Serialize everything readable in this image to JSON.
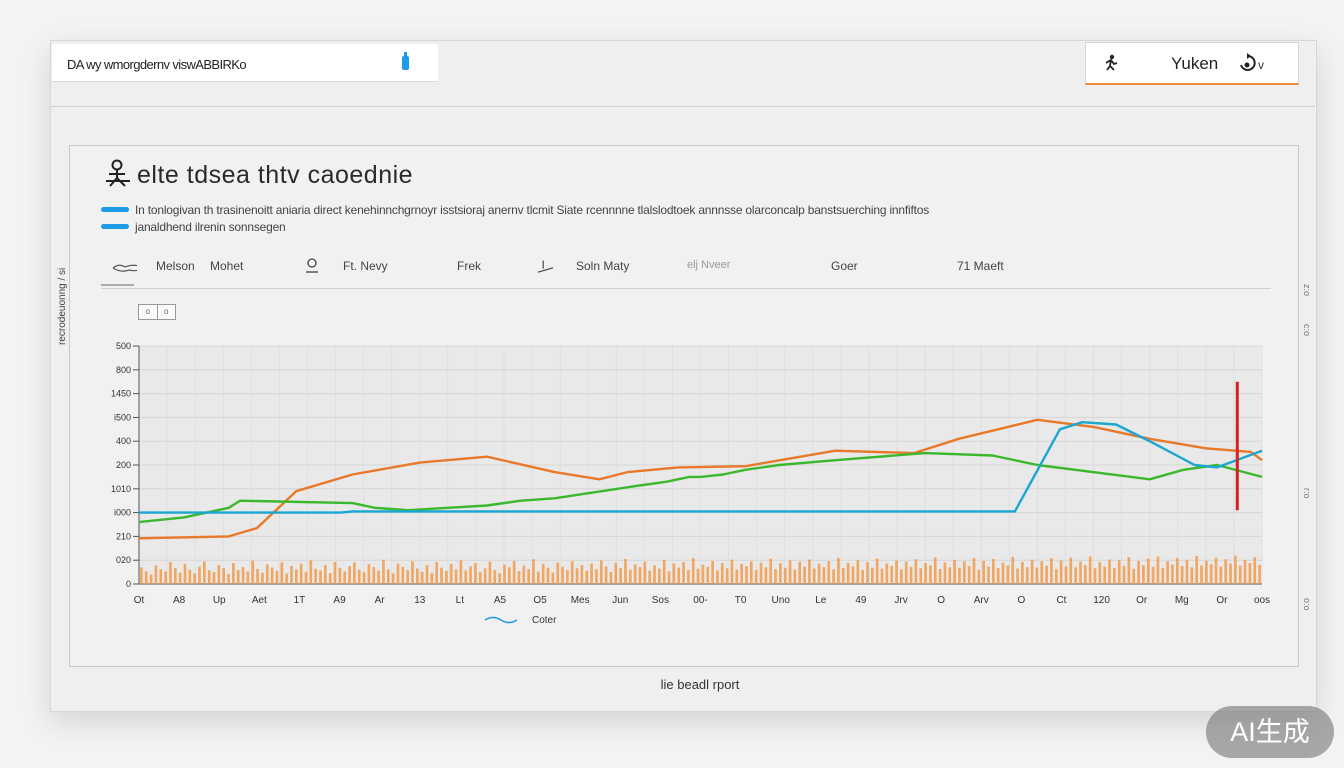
{
  "window": {
    "address_text": "DA wy wmorgdernv viswABBIRKo",
    "user_icon": "person-run-icon",
    "user_name": "Yuken",
    "user_suffix": "v",
    "side_label": "recrodeuonng / si"
  },
  "card": {
    "title": "elte tdsea thtv caoednie",
    "desc_line_1": "In tonlogivan th trasinenoitt aniaria direct kenehinnchgrnoyr isstsioraj anernv tlcmit Siate rcennnne tlalslodtoek annnsse olarconcalp banstsuerching  innfiftos",
    "desc_line_2": "janaldhend ilrenin sonnsegen",
    "desc_color": "#1e9be6"
  },
  "filters": {
    "items": [
      {
        "label": "Melson"
      },
      {
        "label": "Mohet"
      },
      {
        "label": "Ft. Nevy"
      },
      {
        "label": "Frek"
      },
      {
        "label": "Soln Maty"
      },
      {
        "label": "elj Nveer"
      },
      {
        "label": "Goer"
      },
      {
        "label": "71 Maeft"
      }
    ],
    "toggle_a": "o",
    "toggle_b": "o"
  },
  "chart_data": {
    "type": "bar",
    "y_ticks": [
      "0",
      "020",
      "210",
      "i000",
      "1010",
      "200",
      "400",
      "i500",
      "1450",
      "800",
      "500"
    ],
    "categories": [
      "Ot",
      "A8",
      "Up",
      "Aet",
      "1T",
      "A9",
      "Ar",
      "13",
      "Lt",
      "A5",
      "O5",
      "Mes",
      "Jun",
      "Sos",
      "00-",
      "T0",
      "Uno",
      "Le",
      "49",
      "Jrv",
      "O",
      "Arv",
      "O",
      "Ct",
      "120",
      "Or",
      "Mg",
      "Or",
      "oos"
    ],
    "legend": [
      {
        "name": "Coter",
        "color": "#1e9be6"
      }
    ],
    "bar_color": "#f29a4a",
    "bar_values": [
      0.7,
      0.54,
      0.4,
      0.78,
      0.62,
      0.52,
      0.92,
      0.67,
      0.48,
      0.85,
      0.6,
      0.45,
      0.73,
      0.95,
      0.57,
      0.5,
      0.8,
      0.66,
      0.42,
      0.88,
      0.59,
      0.71,
      0.53,
      0.98,
      0.63,
      0.47,
      0.82,
      0.69,
      0.55,
      0.91,
      0.44,
      0.76,
      0.61,
      0.86,
      0.51,
      0.99,
      0.64,
      0.57,
      0.79,
      0.46,
      0.93,
      0.68,
      0.53,
      0.75,
      0.9,
      0.6,
      0.49,
      0.83,
      0.71,
      0.56,
      1.02,
      0.62,
      0.44,
      0.86,
      0.72,
      0.58,
      0.95,
      0.65,
      0.51,
      0.8,
      0.47,
      0.92,
      0.69,
      0.55,
      0.84,
      0.61,
      0.99,
      0.57,
      0.74,
      0.88,
      0.5,
      0.66,
      0.94,
      0.59,
      0.45,
      0.81,
      0.7,
      0.97,
      0.54,
      0.77,
      0.63,
      1.04,
      0.52,
      0.85,
      0.68,
      0.48,
      0.9,
      0.73,
      0.58,
      0.96,
      0.66,
      0.79,
      0.55,
      0.87,
      0.62,
      0.99,
      0.74,
      0.5,
      0.89,
      0.67,
      1.05,
      0.6,
      0.82,
      0.71,
      0.94,
      0.56,
      0.78,
      0.65,
      1.01,
      0.53,
      0.86,
      0.69,
      0.92,
      0.59,
      1.08,
      0.64,
      0.81,
      0.72,
      0.97,
      0.57,
      0.88,
      0.66,
      1.02,
      0.61,
      0.84,
      0.75,
      0.95,
      0.58,
      0.9,
      0.7,
      1.06,
      0.63,
      0.87,
      0.68,
      0.99,
      0.6,
      0.93,
      0.73,
      1.03,
      0.65,
      0.85,
      0.71,
      0.96,
      0.62,
      1.1,
      0.67,
      0.89,
      0.74,
      1.0,
      0.59,
      0.92,
      0.69,
      1.07,
      0.64,
      0.86,
      0.76,
      0.98,
      0.61,
      0.94,
      0.72,
      1.04,
      0.66,
      0.88,
      0.79,
      1.12,
      0.63,
      0.91,
      0.7,
      1.01,
      0.68,
      0.95,
      0.75,
      1.09,
      0.6,
      0.97,
      0.73,
      1.05,
      0.67,
      0.9,
      0.78,
      1.14,
      0.65,
      0.93,
      0.71,
      1.02,
      0.69,
      0.96,
      0.77,
      1.08,
      0.62,
      0.99,
      0.74,
      1.11,
      0.7,
      0.94,
      0.8,
      1.16,
      0.66,
      0.92,
      0.73,
      1.03,
      0.68,
      1.0,
      0.76,
      1.13,
      0.64,
      0.97,
      0.79,
      1.06,
      0.72,
      1.15,
      0.67,
      0.95,
      0.81,
      1.09,
      0.75,
      1.02,
      0.7,
      1.18,
      0.78,
      0.98,
      0.83,
      1.1,
      0.73,
      1.04,
      0.86,
      1.19,
      0.77,
      1.01,
      0.88,
      1.12,
      0.8
    ],
    "series": [
      {
        "name": "orange",
        "color": "#e8782a",
        "x": [
          0.0,
          0.08,
          0.105,
          0.14,
          0.19,
          0.25,
          0.31,
          0.37,
          0.41,
          0.435,
          0.48,
          0.54,
          0.62,
          0.69,
          0.73,
          0.8,
          0.85,
          0.9,
          0.95,
          0.99,
          1.0
        ],
        "y": [
          1.92,
          2.0,
          2.35,
          3.9,
          4.6,
          5.1,
          5.35,
          4.7,
          4.4,
          4.7,
          4.9,
          4.95,
          5.6,
          5.5,
          6.1,
          6.9,
          6.6,
          6.1,
          5.7,
          5.55,
          5.2
        ]
      },
      {
        "name": "green",
        "color": "#3bb82e",
        "x": [
          0.0,
          0.04,
          0.08,
          0.09,
          0.19,
          0.21,
          0.24,
          0.31,
          0.34,
          0.37,
          0.44,
          0.47,
          0.48,
          0.49,
          0.5,
          0.52,
          0.54,
          0.57,
          0.62,
          0.7,
          0.76,
          0.8,
          0.9,
          0.93,
          0.96,
          1.0
        ],
        "y": [
          2.6,
          2.8,
          3.2,
          3.5,
          3.4,
          3.2,
          3.1,
          3.3,
          3.5,
          3.6,
          4.1,
          4.3,
          4.4,
          4.5,
          4.5,
          4.6,
          4.8,
          5.0,
          5.2,
          5.5,
          5.4,
          5.0,
          4.4,
          4.8,
          5.0,
          4.5
        ]
      },
      {
        "name": "teal",
        "color": "#1aa7d1",
        "x": [
          0.0,
          0.18,
          0.19,
          0.45,
          0.46,
          0.53,
          0.6,
          0.7,
          0.78,
          0.82,
          0.84,
          0.87,
          0.9,
          0.94,
          0.96,
          1.0
        ],
        "y": [
          3.0,
          3.0,
          3.05,
          3.05,
          3.05,
          3.05,
          3.05,
          3.05,
          3.05,
          6.5,
          6.8,
          6.7,
          6.0,
          5.0,
          4.9,
          5.6
        ]
      }
    ]
  },
  "footer": {
    "label": "lie beadl rport"
  },
  "right_marks": [
    "z:o",
    "c:o",
    "r:o",
    "o:o"
  ],
  "badge": {
    "label": "AI生成"
  }
}
